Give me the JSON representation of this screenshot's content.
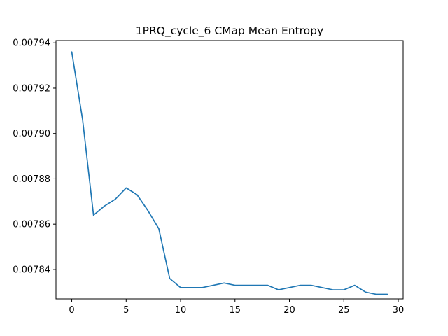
{
  "chart_data": {
    "type": "line",
    "title": "1PRQ_cycle_6 CMap Mean Entropy",
    "xlabel": "",
    "ylabel": "",
    "xlim": [
      -1.45,
      30.45
    ],
    "ylim": [
      0.007827,
      0.007941
    ],
    "xticks": [
      0,
      5,
      10,
      15,
      20,
      25,
      30
    ],
    "xtick_labels": [
      "0",
      "5",
      "10",
      "15",
      "20",
      "25",
      "30"
    ],
    "yticks": [
      0.00784,
      0.00786,
      0.00788,
      0.0079,
      0.00792,
      0.00794
    ],
    "ytick_labels": [
      "0.00784",
      "0.00786",
      "0.00788",
      "0.00790",
      "0.00792",
      "0.00794"
    ],
    "grid": false,
    "legend": "none",
    "series": [
      {
        "color": "#1f77b4",
        "x": [
          0,
          1,
          2,
          3,
          4,
          5,
          6,
          7,
          8,
          9,
          10,
          11,
          12,
          13,
          14,
          15,
          16,
          17,
          18,
          19,
          20,
          21,
          22,
          23,
          24,
          25,
          26,
          27,
          28,
          29
        ],
        "y": [
          0.007936,
          0.007906,
          0.007864,
          0.007868,
          0.007871,
          0.007876,
          0.007873,
          0.007866,
          0.007858,
          0.007836,
          0.007832,
          0.007832,
          0.007832,
          0.007833,
          0.007834,
          0.007833,
          0.007833,
          0.007833,
          0.007833,
          0.007831,
          0.007832,
          0.007833,
          0.007833,
          0.007832,
          0.007831,
          0.007831,
          0.007833,
          0.00783,
          0.007829,
          0.007829
        ]
      }
    ]
  }
}
